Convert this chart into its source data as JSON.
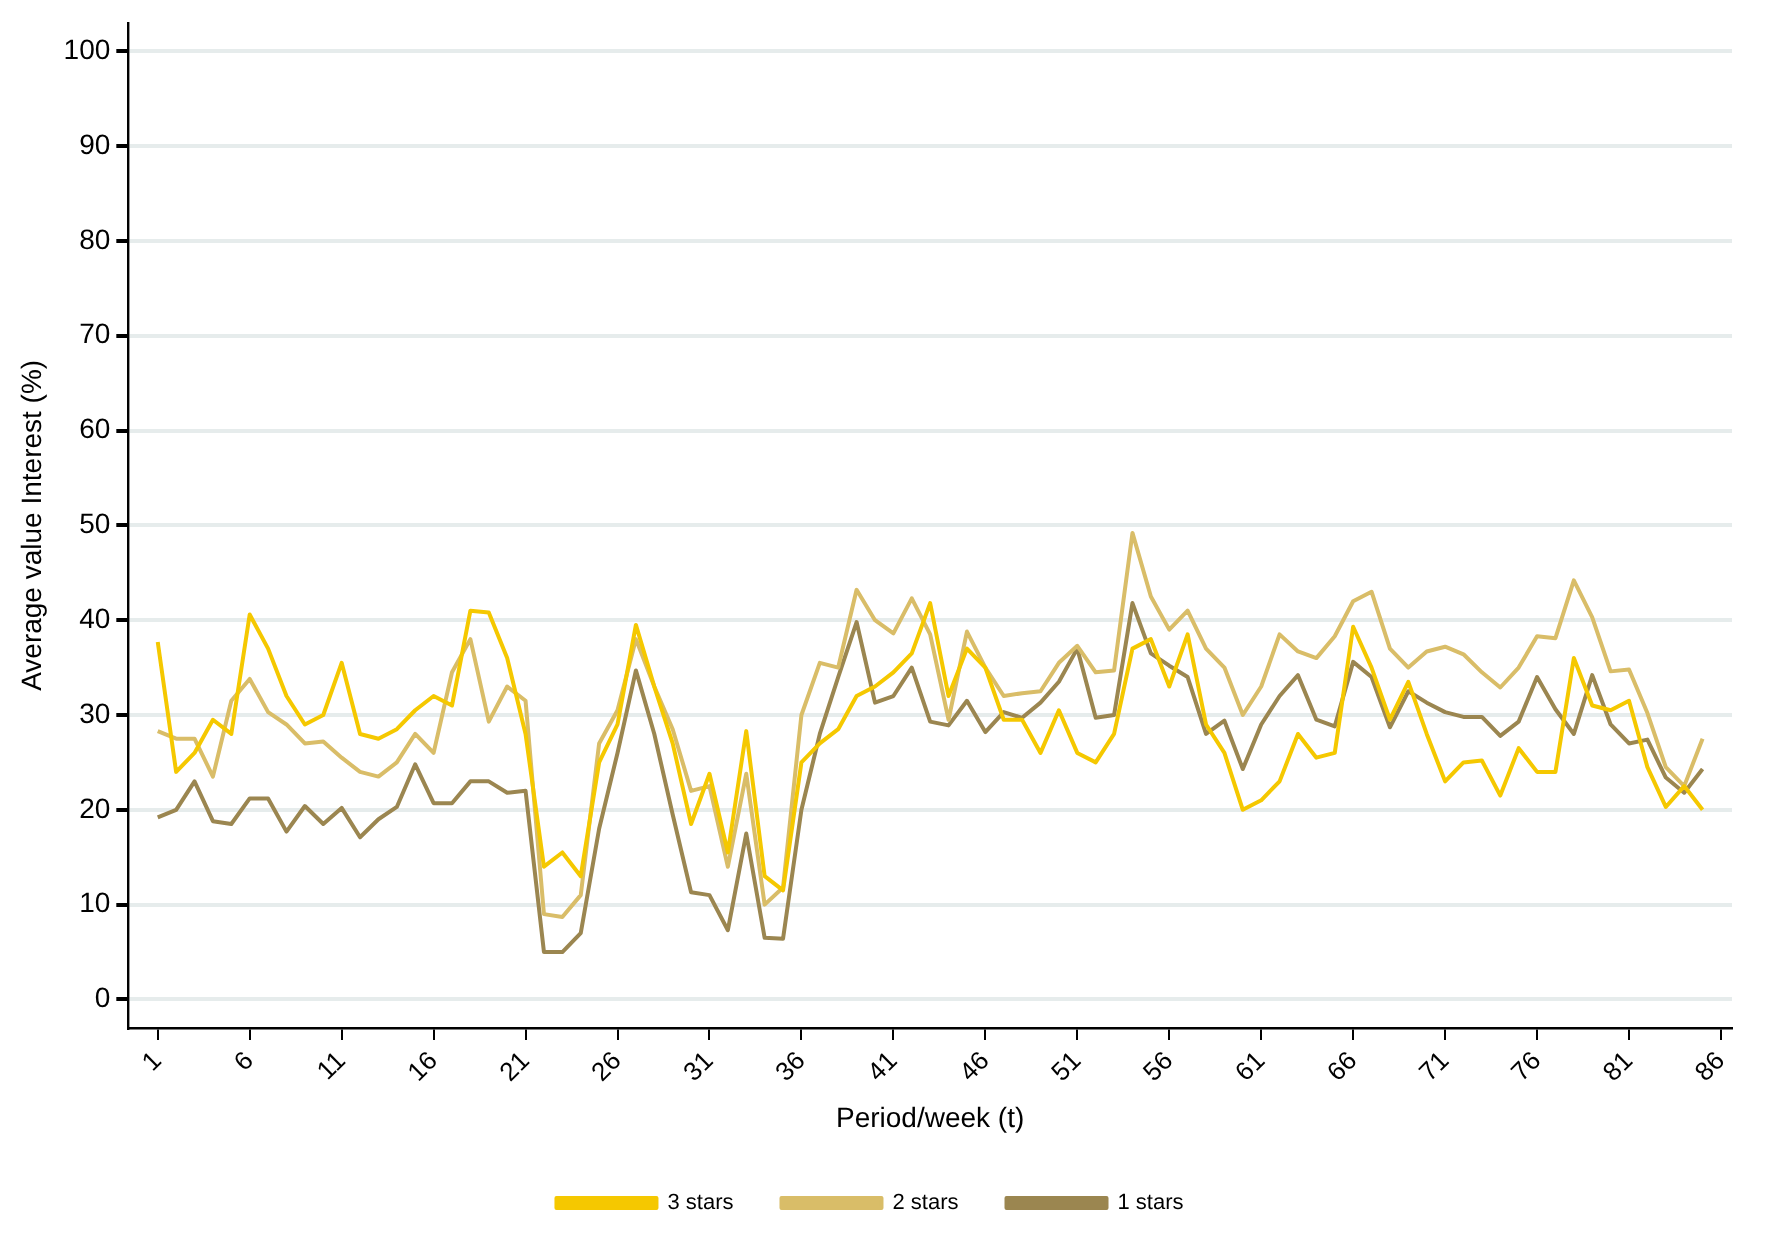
{
  "chart_data": {
    "type": "line",
    "xlabel": "Period/week (t)",
    "ylabel": "Average value Interest (%)",
    "x": [
      1,
      2,
      3,
      4,
      5,
      6,
      7,
      8,
      9,
      10,
      11,
      12,
      13,
      14,
      15,
      16,
      17,
      18,
      19,
      20,
      21,
      22,
      23,
      24,
      25,
      26,
      27,
      28,
      29,
      30,
      31,
      32,
      33,
      34,
      35,
      36,
      37,
      38,
      39,
      40,
      41,
      42,
      43,
      44,
      45,
      46,
      47,
      48,
      49,
      50,
      51,
      52,
      53,
      54,
      55,
      56,
      57,
      58,
      59,
      60,
      61,
      62,
      63,
      64,
      65,
      66,
      67,
      68,
      69,
      70,
      71,
      72,
      73,
      74,
      75,
      76,
      77,
      78,
      79,
      80,
      81,
      82,
      83,
      84,
      85
    ],
    "xlim": [
      -0.6,
      86.6
    ],
    "xticks": [
      1,
      6,
      11,
      16,
      21,
      26,
      31,
      36,
      41,
      46,
      51,
      56,
      61,
      66,
      71,
      76,
      81,
      86
    ],
    "ylim": [
      -3,
      103
    ],
    "yticks": [
      0,
      10,
      20,
      30,
      40,
      50,
      60,
      70,
      80,
      90,
      100
    ],
    "grid": "y",
    "legend": "bottom",
    "marker": "none",
    "line_style": "solid",
    "series": [
      {
        "name": "3 stars",
        "color": "#f5c800",
        "values": [
          37.7,
          24,
          26,
          29.5,
          28,
          40.6,
          37,
          32,
          29,
          30,
          35.5,
          28,
          27.5,
          28.5,
          30.5,
          32,
          31,
          41,
          40.8,
          36,
          28,
          14,
          15.5,
          13,
          25,
          29,
          39.5,
          33,
          27,
          18.5,
          23.8,
          15.5,
          28.3,
          13,
          11.5,
          25,
          27,
          28.5,
          32,
          33,
          34.5,
          36.5,
          41.8,
          32,
          37,
          35,
          29.5,
          29.5,
          26,
          30.5,
          26,
          25,
          28,
          37,
          38,
          33,
          38.5,
          29,
          26,
          20,
          21,
          23,
          28,
          25.5,
          26,
          39.3,
          35,
          29.5,
          33.5,
          28,
          23,
          25,
          25.2,
          21.5,
          26.5,
          24,
          24,
          36,
          31,
          30.5,
          31.5,
          24.5,
          20.3,
          22.5,
          20
        ]
      },
      {
        "name": "2 stars",
        "color": "#d9bd68",
        "values": [
          28.3,
          27.5,
          27.5,
          23.5,
          31.5,
          33.8,
          30.3,
          29,
          27,
          27.2,
          25.5,
          24,
          23.5,
          25,
          28,
          26,
          34.5,
          38,
          29.3,
          33,
          31.5,
          9,
          8.7,
          11,
          27,
          30.5,
          38,
          33,
          28.5,
          22,
          22.5,
          14,
          23.8,
          10,
          11.8,
          30,
          35.5,
          35,
          43.2,
          40,
          38.6,
          42.3,
          38.5,
          29.5,
          38.8,
          35,
          32,
          32.3,
          32.5,
          35.5,
          37.3,
          34.5,
          34.7,
          49.2,
          42.5,
          39,
          41,
          37,
          35,
          30,
          33,
          38.5,
          36.7,
          36,
          38.3,
          42,
          43,
          37,
          35,
          36.7,
          37.2,
          36.4,
          34.5,
          32.9,
          35,
          38.3,
          38.1,
          44.2,
          40.3,
          34.6,
          34.8,
          30.2,
          24.5,
          22.5,
          27.5
        ]
      },
      {
        "name": "1 stars",
        "color": "#9b8650",
        "values": [
          19.2,
          20,
          23,
          18.8,
          18.5,
          21.2,
          21.2,
          17.7,
          20.4,
          18.5,
          20.2,
          17.1,
          19,
          20.3,
          24.8,
          20.7,
          20.7,
          23,
          23,
          21.8,
          22,
          5,
          5,
          7,
          18,
          26,
          34.7,
          28,
          19.5,
          11.3,
          11,
          7.3,
          17.5,
          6.5,
          6.4,
          20,
          28,
          34,
          39.8,
          31.3,
          32,
          35,
          29.3,
          28.9,
          31.5,
          28.2,
          30.3,
          29.7,
          31.3,
          33.5,
          37,
          29.7,
          30,
          41.8,
          36.5,
          35.2,
          34,
          28,
          29.4,
          24.3,
          29,
          32,
          34.2,
          29.5,
          28.8,
          35.6,
          34,
          28.7,
          32.5,
          31.3,
          30.3,
          29.8,
          29.8,
          27.8,
          29.3,
          34,
          30.6,
          28,
          34.2,
          29,
          27,
          27.4,
          23.4,
          21.8,
          24.3
        ]
      }
    ]
  }
}
